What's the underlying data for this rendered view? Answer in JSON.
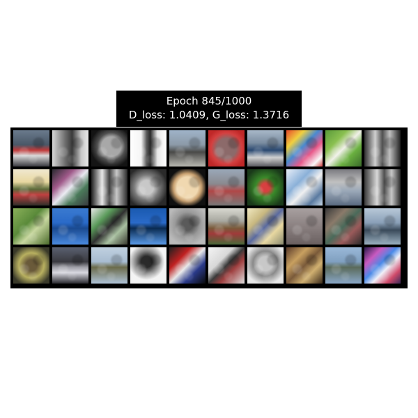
{
  "title": {
    "line1": "Epoch 845/1000",
    "line2": "D_loss: 1.0409, G_loss: 1.3716"
  },
  "grid": {
    "rows": 4,
    "cols": 10,
    "tiles": [
      {
        "bg": "linear-gradient(180deg,#6a7a8c 0%,#4a5868 40%,#c03a3a 55%,#d8d8d8 70%,#3a3a40 100%)"
      },
      {
        "bg": "linear-gradient(90deg,#d8d8d8 0%,#707070 35%,#3a3a3a 55%,#c8c8c8 80%,#e8e8e8 100%)"
      },
      {
        "bg": "radial-gradient(circle at 55% 45%,#a8a8a8 0 14px,#505050 20px,#141414 30px)"
      },
      {
        "bg": "linear-gradient(90deg,#ffffff 0%,#f4f4f4 30%,#5a5a5a 45%,#2a2a2a 55%,#e8e8e8 75%,#ffffff 100%)"
      },
      {
        "bg": "linear-gradient(180deg,#9fb3c8 0%,#8c9aa8 40%,#4a4a48 60%,#b8b8b0 100%)"
      },
      {
        "bg": "radial-gradient(circle at 50% 50%,#8c6a6a 0 14px,#d44040 22px,#c02828 30px)"
      },
      {
        "bg": "linear-gradient(180deg,#a8b8c8 0%,#7a8ca0 35%,#2a4870 55%,#d0d0d0 75%,#5a5a60 100%)"
      },
      {
        "bg": "linear-gradient(135deg,#e84a2a 0%,#f0d040 25%,#4a8ad0 45%,#e85a8a 65%,#f8f8f8 85%,#d04040 100%)"
      },
      {
        "bg": "linear-gradient(135deg,#5a9a3a 0%,#8ac050 30%,#f0f0e8 50%,#6ab040 70%,#3a6a2a 100%)"
      },
      {
        "bg": "linear-gradient(90deg,#303030 0%,#d0d0d0 30%,#505050 50%,#c0c0c0 70%,#202020 100%)"
      },
      {
        "bg": "linear-gradient(180deg,#f0e8d0 0%,#e8d8a0 35%,#5a6a3a 55%,#c04040 70%,#30302a 100%)"
      },
      {
        "bg": "linear-gradient(135deg,#2a2a30 0%,#a05a8a 30%,#e8e8f0 50%,#4a7a5a 70%,#3a3a40 100%)"
      },
      {
        "bg": "linear-gradient(90deg,#202020 0%,#e8e8e8 30%,#404040 50%,#c8c8c8 70%,#2a2a2a 100%)"
      },
      {
        "bg": "radial-gradient(circle at 45% 50%,#c8c8c8 0 10px,#7a7a7a 18px,#2a2a2a 30px)"
      },
      {
        "bg": "radial-gradient(circle at 50% 50%,#f0d8b0 0 15px,#c8a070 20px,#101010 28px)"
      },
      {
        "bg": "linear-gradient(180deg,#9aa8b8 0%,#8a8a90 40%,#b04848 60%,#787878 100%)"
      },
      {
        "bg": "radial-gradient(circle at 50% 50%,#d84040 0 6px,#3a8a2a 14px,#1a3a1a 30px)"
      },
      {
        "bg": "linear-gradient(135deg,#e8eef8 0%,#8ab0d8 35%,#f0f0f0 55%,#5a7aa0 80%,#c8d8e8 100%)"
      },
      {
        "bg": "linear-gradient(180deg,#7a7a80 0%,#c0c0c0 35%,#9aa8b8 60%,#5a6a80 100%)"
      },
      {
        "bg": "linear-gradient(90deg,#3a3a3a 0%,#d8d8d8 35%,#505050 55%,#c8c8c8 75%,#2a2a2a 100%)"
      },
      {
        "bg": "linear-gradient(135deg,#8ab05a 0%,#5a8a3a 40%,#c8d8a0 60%,#4a6a2a 100%)"
      },
      {
        "bg": "linear-gradient(180deg,#3a7ad0 0%,#2a6ac8 40%,#1a4a90 55%,#4a8ae0 100%)"
      },
      {
        "bg": "linear-gradient(135deg,#e8e8e8 0%,#5a9a5a 30%,#303030 50%,#a8c0a0 70%,#3a3a30 100%)"
      },
      {
        "bg": "linear-gradient(180deg,#1a5ab0 0%,#2a6ac8 40%,#0a2a50 55%,#5a9ae8 100%)"
      },
      {
        "bg": "radial-gradient(circle at 50% 45%,#5a5a5a 0 8px,#9a9a9a 18px,#bababa 30px)"
      },
      {
        "bg": "linear-gradient(180deg,#d8d8d0 0%,#a8a8a0 35%,#7a5a3a 55%,#a03a3a 70%,#4a6a3a 100%)"
      },
      {
        "bg": "linear-gradient(135deg,#f0e8c0 0%,#c8b880 30%,#5a6aa0 50%,#e8d8a0 70%,#8a8a70 100%)"
      },
      {
        "bg": "linear-gradient(180deg,#a8a0a0 0%,#8a8080 50%,#6a6060 100%)"
      },
      {
        "bg": "linear-gradient(135deg,#3a3a3a 0%,#8a7a6a 30%,#4a6a5a 50%,#9a5a5a 70%,#2a2a2a 100%)"
      },
      {
        "bg": "linear-gradient(180deg,#b8c8d8 0%,#8aa0b8 40%,#3a4a5a 60%,#9ab0c0 100%)"
      },
      {
        "bg": "radial-gradient(circle at 50% 50%,#6a5a3a 0 8px,#b8b060 18px,#3a3a2a 30px)"
      },
      {
        "bg": "linear-gradient(180deg,#5a6070 0%,#3a3a40 40%,#a0a0a8 55%,#d8d8e0 70%,#2a2a30 100%)"
      },
      {
        "bg": "linear-gradient(180deg,#c0d0e0 0%,#a8bcd0 40%,#6a6a4a 55%,#b0c4d8 100%)"
      },
      {
        "bg": "radial-gradient(circle at 45% 40%,#2a2a2a 0 8px,#8a8a8a 16px,#f4f4f4 26px)"
      },
      {
        "bg": "linear-gradient(135deg,#202020 0%,#c02020 30%,#e8e8e8 50%,#2a3a8a 70%,#0a0a0a 100%)"
      },
      {
        "bg": "linear-gradient(135deg,#f4f4f4 0%,#d8d8d8 35%,#3a3a3a 50%,#a04040 65%,#e0e0e0 100%)"
      },
      {
        "bg": "radial-gradient(circle at 50% 45%,#c8c8c8 0 10px,#8a8a8a 18px,#e8e8e8 30px)"
      },
      {
        "bg": "linear-gradient(135deg,#5a3a2a 0%,#c8a060 30%,#7a5a3a 50%,#d0b070 70%,#3a2a1a 100%)"
      },
      {
        "bg": "linear-gradient(180deg,#9ab8d8 0%,#80a0c0 40%,#5a6a5a 55%,#8aa8c8 100%)"
      },
      {
        "bg": "linear-gradient(135deg,#2a1a4a 0%,#c85ac0 25%,#4a8ae8 45%,#f0f0f8 60%,#d04a6a 80%,#3a2a5a 100%)"
      }
    ]
  }
}
